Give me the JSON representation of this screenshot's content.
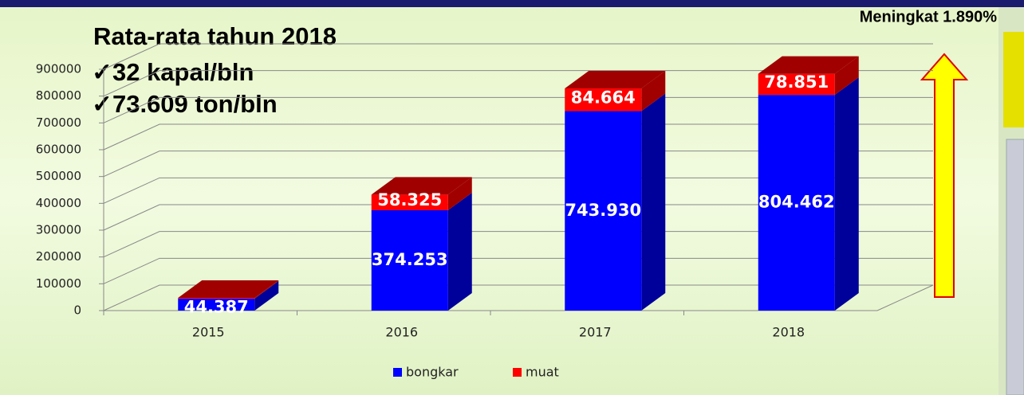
{
  "chart_data": {
    "type": "bar3d_stacked",
    "categories": [
      "2015",
      "2016",
      "2017",
      "2018"
    ],
    "series": [
      {
        "name": "bongkar",
        "color": "#0000ff",
        "values": [
          44387,
          374253,
          743930,
          804462
        ],
        "value_labels": [
          "44.387",
          "374.253",
          "743.930",
          "804.462"
        ]
      },
      {
        "name": "muat",
        "color": "#ff0000",
        "values": [
          3000,
          58325,
          84664,
          78851
        ],
        "value_labels": [
          null,
          "58.325",
          "84.664",
          "78.851"
        ]
      }
    ],
    "ylim": [
      0,
      900000
    ],
    "yticks": [
      0,
      100000,
      200000,
      300000,
      400000,
      500000,
      600000,
      700000,
      800000,
      900000
    ],
    "grid": true,
    "legend": "bottom",
    "annotations": [
      "Rata-rata tahun 2018",
      "✓32 kapal/bln",
      "✓73.609 ton/bln",
      "Meningkat 1.890%"
    ]
  }
}
